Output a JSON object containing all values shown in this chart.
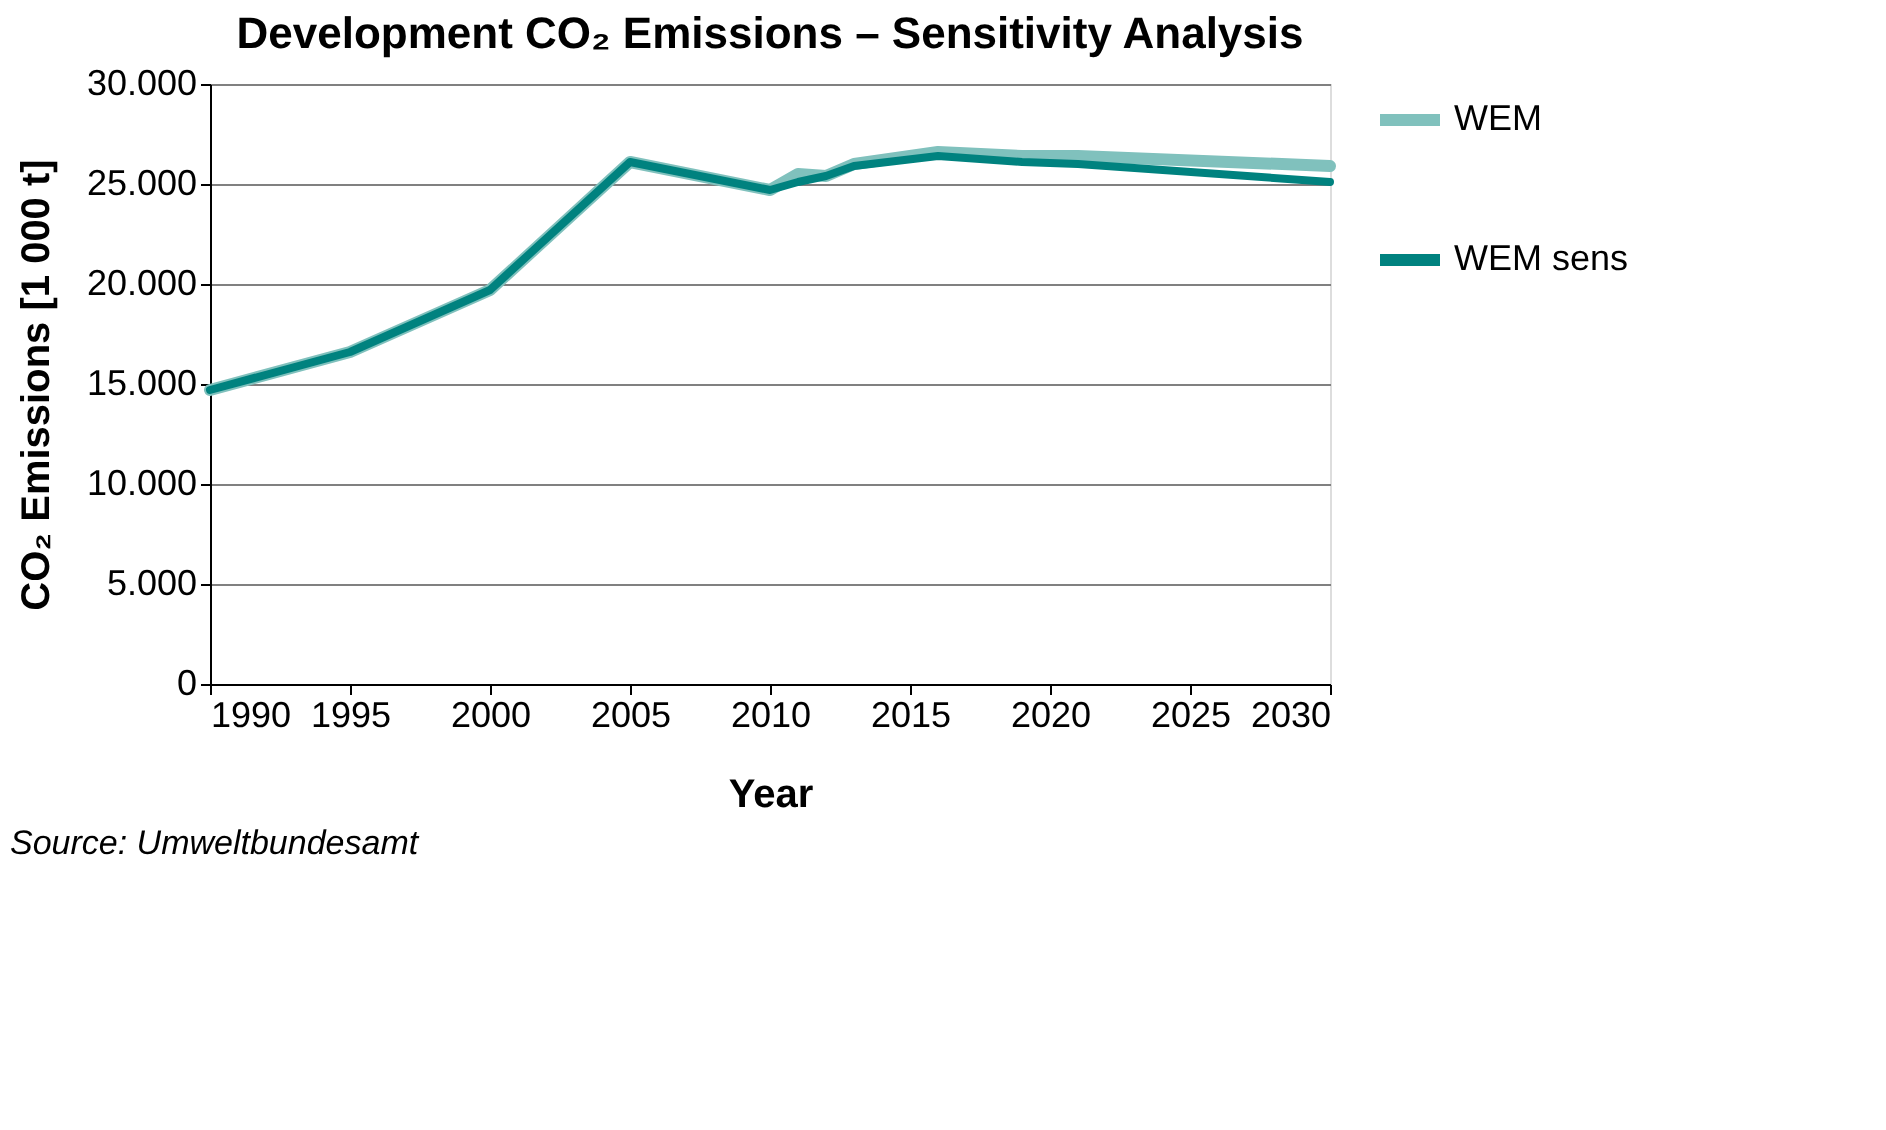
{
  "chart_data": {
    "type": "line",
    "title": "Development CO₂ Emissions – Sensitivity Analysis",
    "xlabel": "Year",
    "ylabel": "CO₂ Emissions [1 000  t]",
    "series": [
      {
        "name": "WEM",
        "color": "#80c1bd",
        "x": [
          1990,
          1995,
          2000,
          2005,
          2010,
          2011,
          2012,
          2013,
          2016,
          2019,
          2021,
          2030
        ],
        "values": [
          14700,
          16600,
          19700,
          26100,
          24700,
          25500,
          25400,
          26000,
          26600,
          26400,
          26400,
          25900
        ]
      },
      {
        "name": "WEM sens",
        "color": "#00827f",
        "x": [
          1990,
          1995,
          2000,
          2005,
          2010,
          2011,
          2012,
          2013,
          2016,
          2019,
          2021,
          2030
        ],
        "values": [
          14700,
          16600,
          19700,
          26100,
          24700,
          25100,
          25400,
          25900,
          26400,
          26100,
          26000,
          25100
        ]
      }
    ],
    "xlim": [
      1990,
      2030
    ],
    "xticks": [
      1990,
      1995,
      2000,
      2005,
      2010,
      2015,
      2020,
      2025,
      2030
    ],
    "ylim": [
      0,
      30000
    ],
    "yticks": [
      0,
      {
        "value": 5000,
        "label": "5.000"
      },
      {
        "value": 10000,
        "label": "10.000"
      },
      {
        "value": 15000,
        "label": "15.000"
      },
      {
        "value": 20000,
        "label": "20.000"
      },
      {
        "value": 25000,
        "label": "25.000"
      },
      {
        "value": 30000,
        "label": "30.000"
      }
    ],
    "grid": "y",
    "legend": "right",
    "marker": "none",
    "line_style": "solid",
    "annotations": [
      "Source: Umweltbundesamt"
    ]
  }
}
